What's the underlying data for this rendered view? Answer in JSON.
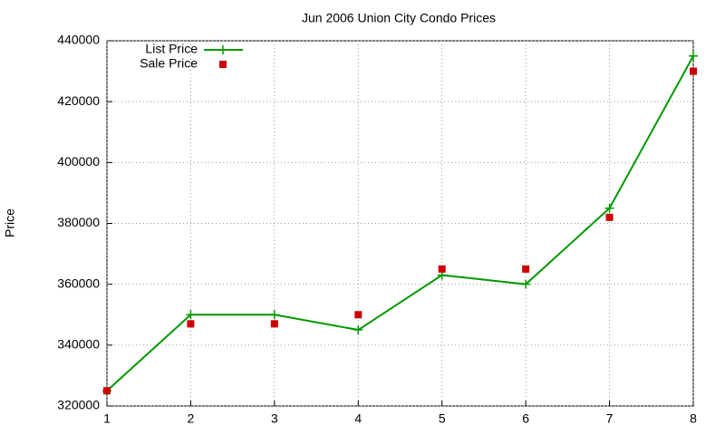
{
  "chart_data": {
    "type": "line",
    "title": "Jun 2006 Union City Condo Prices",
    "y_label": "Price",
    "x": [
      1,
      2,
      3,
      4,
      5,
      6,
      7,
      8
    ],
    "series": [
      {
        "name": "List Price",
        "color": "#009900",
        "style": "linespoints",
        "values": [
          325000,
          350000,
          350000,
          345000,
          363000,
          360000,
          385000,
          435000
        ]
      },
      {
        "name": "Sale Price",
        "color": "#cc0000",
        "style": "points",
        "values": [
          325000,
          347000,
          347000,
          350000,
          365000,
          365000,
          382000,
          430000
        ]
      }
    ],
    "xlim": [
      1,
      8
    ],
    "xticks": [
      1,
      2,
      3,
      4,
      5,
      6,
      7,
      8
    ],
    "ylim": [
      320000,
      440000
    ],
    "yticks": [
      320000,
      340000,
      360000,
      380000,
      400000,
      420000,
      440000
    ],
    "grid": true,
    "legend": "top-left"
  }
}
